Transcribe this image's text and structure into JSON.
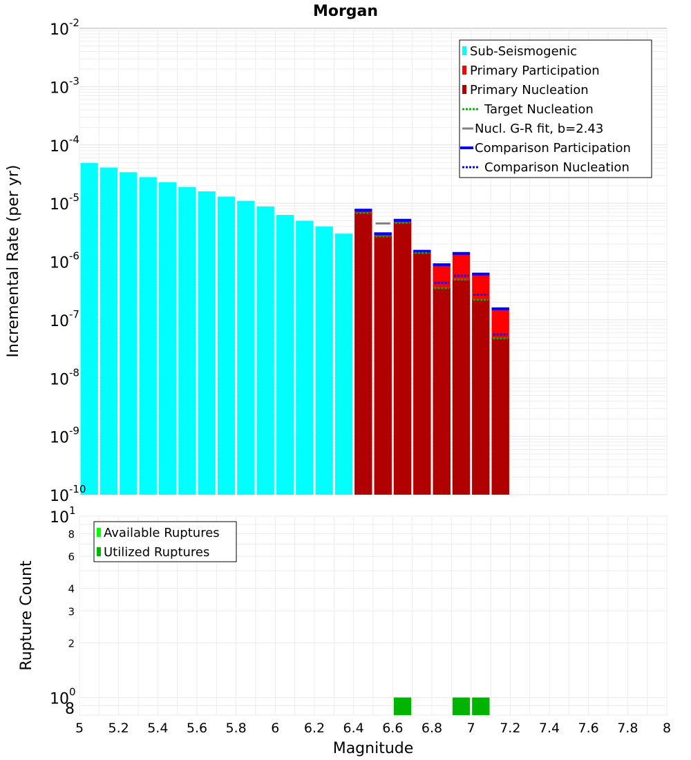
{
  "chart_data": {
    "type": "bar",
    "title": "Morgan",
    "top_panel": {
      "ylabel": "Incremental Rate (per yr)",
      "yscale": "log",
      "ylim": [
        1e-10,
        0.01
      ],
      "y_tick_labels": [
        {
          "base": "10",
          "exp": "-2"
        },
        {
          "base": "10",
          "exp": "-3"
        },
        {
          "base": "10",
          "exp": "-4"
        },
        {
          "base": "10",
          "exp": "-5"
        },
        {
          "base": "10",
          "exp": "-6"
        },
        {
          "base": "10",
          "exp": "-7"
        },
        {
          "base": "10",
          "exp": "-8"
        },
        {
          "base": "10",
          "exp": "-9"
        },
        {
          "base": "10",
          "exp": "-10"
        }
      ],
      "legend_position": "top-right",
      "legend": [
        {
          "label": "Sub-Seismogenic",
          "color": "#00ffff",
          "style": "box"
        },
        {
          "label": "Primary Participation",
          "color": "#ff0000",
          "style": "box"
        },
        {
          "label": "Primary Nucleation",
          "color": "#b00000",
          "style": "box"
        },
        {
          "label": "Target Nucleation",
          "color": "#00b400",
          "style": "dotted"
        },
        {
          "label": "Nucl. G-R fit, b=2.43",
          "color": "#808080",
          "style": "solid"
        },
        {
          "label": "Comparison Participation",
          "color": "#0000ff",
          "style": "thick"
        },
        {
          "label": "Comparison Nucleation",
          "color": "#0000ff",
          "style": "dotted"
        }
      ],
      "sub_seismogenic": {
        "x": [
          5.05,
          5.15,
          5.25,
          5.35,
          5.45,
          5.55,
          5.65,
          5.75,
          5.85,
          5.95,
          6.05,
          6.15,
          6.25,
          6.35
        ],
        "values": [
          4.9e-05,
          4.1e-05,
          3.4e-05,
          2.8e-05,
          2.3e-05,
          1.9e-05,
          1.6e-05,
          1.3e-05,
          1.1e-05,
          8.8e-06,
          6.3e-06,
          5e-06,
          4e-06,
          3e-06
        ]
      },
      "primary": {
        "x": [
          6.45,
          6.55,
          6.65,
          6.75,
          6.85,
          6.95,
          7.05,
          7.15
        ],
        "participation": [
          7.5e-06,
          3e-06,
          5e-06,
          1.5e-06,
          8.6e-07,
          1.35e-06,
          6e-07,
          1.55e-07
        ],
        "nucleation": [
          6.8e-06,
          2.7e-06,
          4.6e-06,
          1.4e-06,
          3.5e-07,
          4.8e-07,
          2.2e-07,
          4.8e-08
        ],
        "target_nucleation": [
          6.8e-06,
          2.7e-06,
          4.6e-06,
          1.4e-06,
          3.5e-07,
          4.9e-07,
          2.2e-07,
          4.8e-08
        ],
        "comparison_participation": [
          7.6e-06,
          3e-06,
          5.1e-06,
          1.5e-06,
          8.8e-07,
          1.38e-06,
          6.1e-07,
          1.55e-07
        ],
        "comparison_nucleation": [
          7.1e-06,
          2.8e-06,
          4.7e-06,
          1.45e-06,
          4.3e-07,
          5.7e-07,
          2.7e-07,
          5.6e-08
        ]
      },
      "gr_fit": {
        "x": [
          6.55
        ],
        "values": [
          4.5e-06
        ]
      }
    },
    "bottom_panel": {
      "ylabel": "Rupture Count",
      "yscale": "log",
      "ylim": [
        0.8,
        10
      ],
      "y_major_labels": [
        {
          "base": "10",
          "exp": "1"
        },
        {
          "base": "10",
          "exp": "0"
        }
      ],
      "y_minor_labels": [
        "8",
        "6",
        "4",
        "3",
        "2",
        "8"
      ],
      "legend_position": "top-left",
      "legend": [
        {
          "label": "Available Ruptures",
          "color": "#00ff00"
        },
        {
          "label": "Utilized Ruptures",
          "color": "#00b400"
        }
      ],
      "utilized": {
        "x": [
          6.65,
          6.95,
          7.05
        ],
        "values": [
          1,
          1,
          1
        ]
      }
    },
    "xlabel": "Magnitude",
    "xlim": [
      5,
      8
    ],
    "x_tick_labels": [
      "5",
      "5.2",
      "5.4",
      "5.6",
      "5.8",
      "6",
      "6.2",
      "6.4",
      "6.6",
      "6.8",
      "7",
      "7.2",
      "7.4",
      "7.6",
      "7.8",
      "8"
    ]
  }
}
